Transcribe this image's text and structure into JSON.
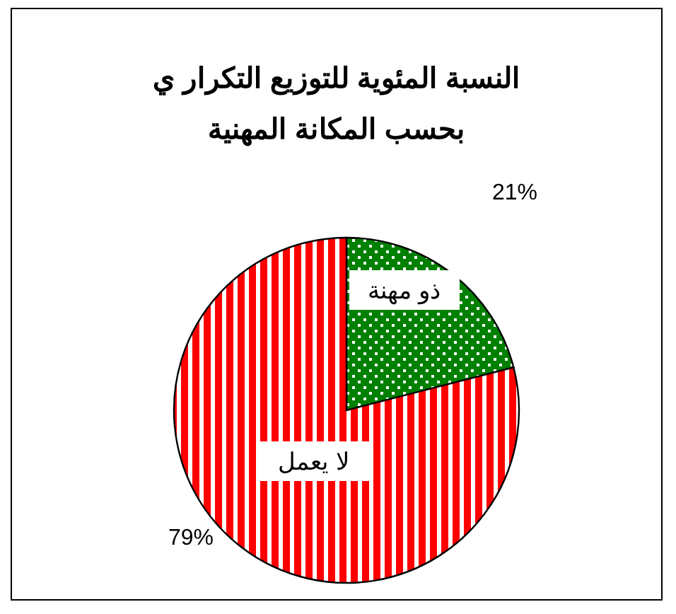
{
  "chart_data": {
    "type": "pie",
    "title": "النسبة المئوية للتوزيع التكرار ي\nبحسب المكانة المهنية",
    "categories": [
      "ذو مهنة",
      "لا يعمل"
    ],
    "values": [
      21,
      79
    ],
    "colors": [
      "#008000",
      "#ff0000"
    ],
    "value_labels": [
      "21%",
      "79%"
    ]
  }
}
